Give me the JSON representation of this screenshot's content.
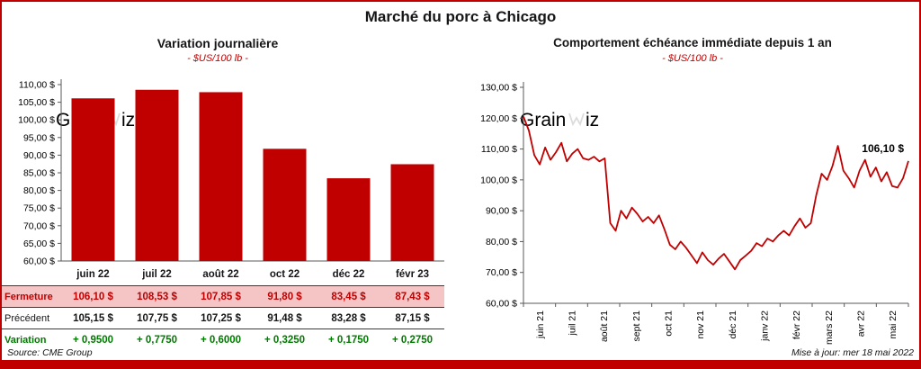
{
  "page": {
    "title": "Marché du porc à Chicago",
    "source": "Source: CME Group",
    "updated": "Mise à jour: mer 18 mai 2022",
    "watermark": "GrainWiz"
  },
  "colors": {
    "accent_red": "#C00000",
    "row_pink": "#F5C5C6",
    "variation_green": "#007A00",
    "watermark_gray": "#DCDCDC"
  },
  "chart_data": [
    {
      "type": "bar",
      "title": "Variation  journalière",
      "subtitle": "- $US/100 lb -",
      "categories": [
        "juin 22",
        "juil 22",
        "août 22",
        "oct 22",
        "déc 22",
        "févr 23"
      ],
      "values": [
        106.1,
        108.53,
        107.85,
        91.8,
        83.45,
        87.43
      ],
      "ylim": [
        60,
        110
      ],
      "ytick_step": 5,
      "ytick_labels": [
        "110,00 $",
        "105,00 $",
        "100,00 $",
        "95,00 $",
        "90,00 $",
        "85,00 $",
        "80,00 $",
        "75,00 $",
        "70,00 $",
        "65,00 $",
        "60,00 $"
      ],
      "bar_color": "#C00000",
      "grid": false,
      "table": {
        "rows": [
          {
            "style": "fermeture",
            "label": "Fermeture",
            "values": [
              "106,10  $",
              "108,53  $",
              "107,85  $",
              "91,80  $",
              "83,45  $",
              "87,43  $"
            ]
          },
          {
            "style": "precedent",
            "label": "Précédent",
            "values": [
              "105,15  $",
              "107,75  $",
              "107,25  $",
              "91,48  $",
              "83,28  $",
              "87,15  $"
            ]
          },
          {
            "style": "variation",
            "label": "Variation",
            "values": [
              "+ 0,9500",
              "+ 0,7750",
              "+ 0,6000",
              "+ 0,3250",
              "+ 0,1750",
              "+ 0,2750"
            ]
          }
        ]
      }
    },
    {
      "type": "line",
      "title": "Comportement  échéance  immédiate  depuis 1 an",
      "subtitle": "- $US/100 lb -",
      "x_labels": [
        "juin 21",
        "juil 21",
        "août 21",
        "sept 21",
        "oct 21",
        "nov 21",
        "déc 21",
        "janv 22",
        "févr 22",
        "mars 22",
        "avr 22",
        "mai 22"
      ],
      "points_per_month": 6,
      "values": [
        120.5,
        116.0,
        108.0,
        105.0,
        110.5,
        106.5,
        109.0,
        112.0,
        106.0,
        108.5,
        110.0,
        107.0,
        106.5,
        107.5,
        106.0,
        107.0,
        86.0,
        83.5,
        90.0,
        87.5,
        91.0,
        89.0,
        86.5,
        88.0,
        86.0,
        88.5,
        84.0,
        79.0,
        77.5,
        80.0,
        78.0,
        75.5,
        73.0,
        76.5,
        74.0,
        72.5,
        74.5,
        76.0,
        73.5,
        71.0,
        74.0,
        75.5,
        77.0,
        79.5,
        78.5,
        81.0,
        80.0,
        82.0,
        83.5,
        82.0,
        85.0,
        87.5,
        84.5,
        86.0,
        95.0,
        102.0,
        100.0,
        104.5,
        111.0,
        103.0,
        100.5,
        97.5,
        103.0,
        106.5,
        101.0,
        104.0,
        99.5,
        102.5,
        98.0,
        97.5,
        100.5,
        106.1
      ],
      "ylim": [
        60,
        130
      ],
      "ytick_step": 10,
      "ytick_labels": [
        "130,00 $",
        "120,00 $",
        "110,00 $",
        "100,00 $",
        "90,00 $",
        "80,00 $",
        "70,00 $",
        "60,00 $"
      ],
      "line_color": "#C00000",
      "grid": false,
      "end_label": "106,10 $"
    }
  ]
}
